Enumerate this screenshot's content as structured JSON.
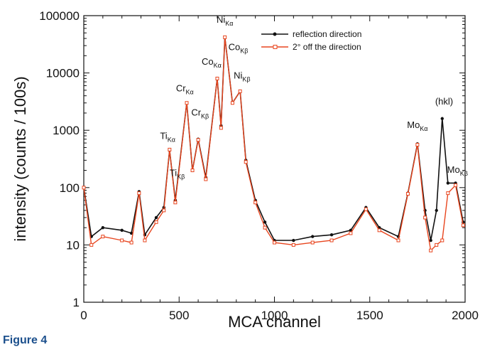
{
  "caption": "Figure 4",
  "chart_data": {
    "type": "line",
    "xlabel": "MCA channel",
    "ylabel": "intensity (counts / 100s)",
    "x_scale": "linear",
    "y_scale": "log",
    "xlim": [
      0,
      2000
    ],
    "ylim": [
      1,
      100000
    ],
    "x_ticks": [
      "0",
      "500",
      "1000",
      "1500",
      "2000"
    ],
    "y_ticks": [
      "1",
      "10",
      "100",
      "1000",
      "10000",
      "100000"
    ],
    "legend_position": "top-right",
    "series": [
      {
        "name": "reflection direction",
        "color": "#111111",
        "marker": "filled-circle",
        "points": [
          [
            0,
            100
          ],
          [
            40,
            14
          ],
          [
            100,
            20
          ],
          [
            200,
            18
          ],
          [
            250,
            16
          ],
          [
            290,
            85
          ],
          [
            320,
            15
          ],
          [
            380,
            30
          ],
          [
            420,
            45
          ],
          [
            450,
            450
          ],
          [
            480,
            60
          ],
          [
            540,
            3000
          ],
          [
            570,
            200
          ],
          [
            600,
            700
          ],
          [
            640,
            150
          ],
          [
            700,
            8000
          ],
          [
            720,
            1200
          ],
          [
            740,
            42000
          ],
          [
            780,
            3000
          ],
          [
            820,
            4800
          ],
          [
            850,
            300
          ],
          [
            900,
            60
          ],
          [
            950,
            25
          ],
          [
            1000,
            12
          ],
          [
            1100,
            12
          ],
          [
            1200,
            14
          ],
          [
            1300,
            15
          ],
          [
            1400,
            18
          ],
          [
            1480,
            45
          ],
          [
            1550,
            20
          ],
          [
            1650,
            14
          ],
          [
            1700,
            80
          ],
          [
            1750,
            580
          ],
          [
            1790,
            40
          ],
          [
            1820,
            12
          ],
          [
            1850,
            40
          ],
          [
            1880,
            1600
          ],
          [
            1910,
            120
          ],
          [
            1950,
            120
          ],
          [
            1990,
            25
          ]
        ]
      },
      {
        "name": "2° off the direction",
        "color": "#e8451e",
        "marker": "open-square",
        "points": [
          [
            0,
            100
          ],
          [
            40,
            10
          ],
          [
            100,
            14
          ],
          [
            200,
            12
          ],
          [
            250,
            11
          ],
          [
            290,
            80
          ],
          [
            320,
            12
          ],
          [
            380,
            25
          ],
          [
            420,
            40
          ],
          [
            450,
            460
          ],
          [
            480,
            55
          ],
          [
            540,
            3000
          ],
          [
            570,
            200
          ],
          [
            600,
            680
          ],
          [
            640,
            140
          ],
          [
            700,
            8000
          ],
          [
            720,
            1100
          ],
          [
            740,
            42000
          ],
          [
            780,
            3000
          ],
          [
            820,
            4800
          ],
          [
            850,
            280
          ],
          [
            900,
            55
          ],
          [
            950,
            20
          ],
          [
            1000,
            11
          ],
          [
            1100,
            10
          ],
          [
            1200,
            11
          ],
          [
            1300,
            12
          ],
          [
            1400,
            16
          ],
          [
            1480,
            42
          ],
          [
            1550,
            18
          ],
          [
            1650,
            12
          ],
          [
            1700,
            78
          ],
          [
            1750,
            560
          ],
          [
            1790,
            30
          ],
          [
            1820,
            8
          ],
          [
            1850,
            10
          ],
          [
            1880,
            12
          ],
          [
            1910,
            80
          ],
          [
            1950,
            110
          ],
          [
            1990,
            22
          ]
        ]
      }
    ],
    "annotations": [
      {
        "text": "Ti",
        "sub": "Kα",
        "x": 440,
        "y": 700
      },
      {
        "text": "Ti",
        "sub": "Kβ",
        "x": 490,
        "y": 160
      },
      {
        "text": "Cr",
        "sub": "Kα",
        "x": 530,
        "y": 4800
      },
      {
        "text": "Cr",
        "sub": "Kβ",
        "x": 610,
        "y": 1800
      },
      {
        "text": "Co",
        "sub": "Kα",
        "x": 670,
        "y": 14000
      },
      {
        "text": "Ni",
        "sub": "Kα",
        "x": 740,
        "y": 75000
      },
      {
        "text": "Co",
        "sub": "Kβ",
        "x": 810,
        "y": 25000
      },
      {
        "text": "Ni",
        "sub": "Kβ",
        "x": 830,
        "y": 8000
      },
      {
        "text": "Mo",
        "sub": "Kα",
        "x": 1750,
        "y": 1100
      },
      {
        "text": "(hkl)",
        "sub": "",
        "x": 1890,
        "y": 2800
      },
      {
        "text": "Mo",
        "sub": "Kβ",
        "x": 1960,
        "y": 180
      }
    ]
  }
}
